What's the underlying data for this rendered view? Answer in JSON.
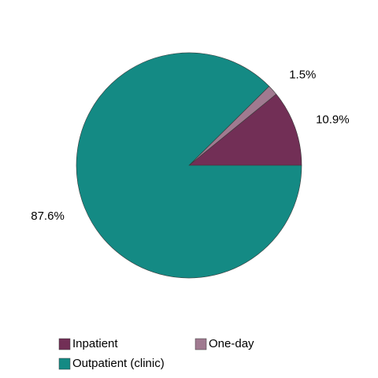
{
  "chart_data": {
    "type": "pie",
    "categories": [
      "Inpatient",
      "One-day",
      "Outpatient (clinic)"
    ],
    "values": [
      10.9,
      1.5,
      87.6
    ],
    "value_labels": [
      "10.9%",
      "1.5%",
      "87.6%"
    ],
    "colors": [
      "#722F56",
      "#A07A90",
      "#148A84"
    ]
  }
}
